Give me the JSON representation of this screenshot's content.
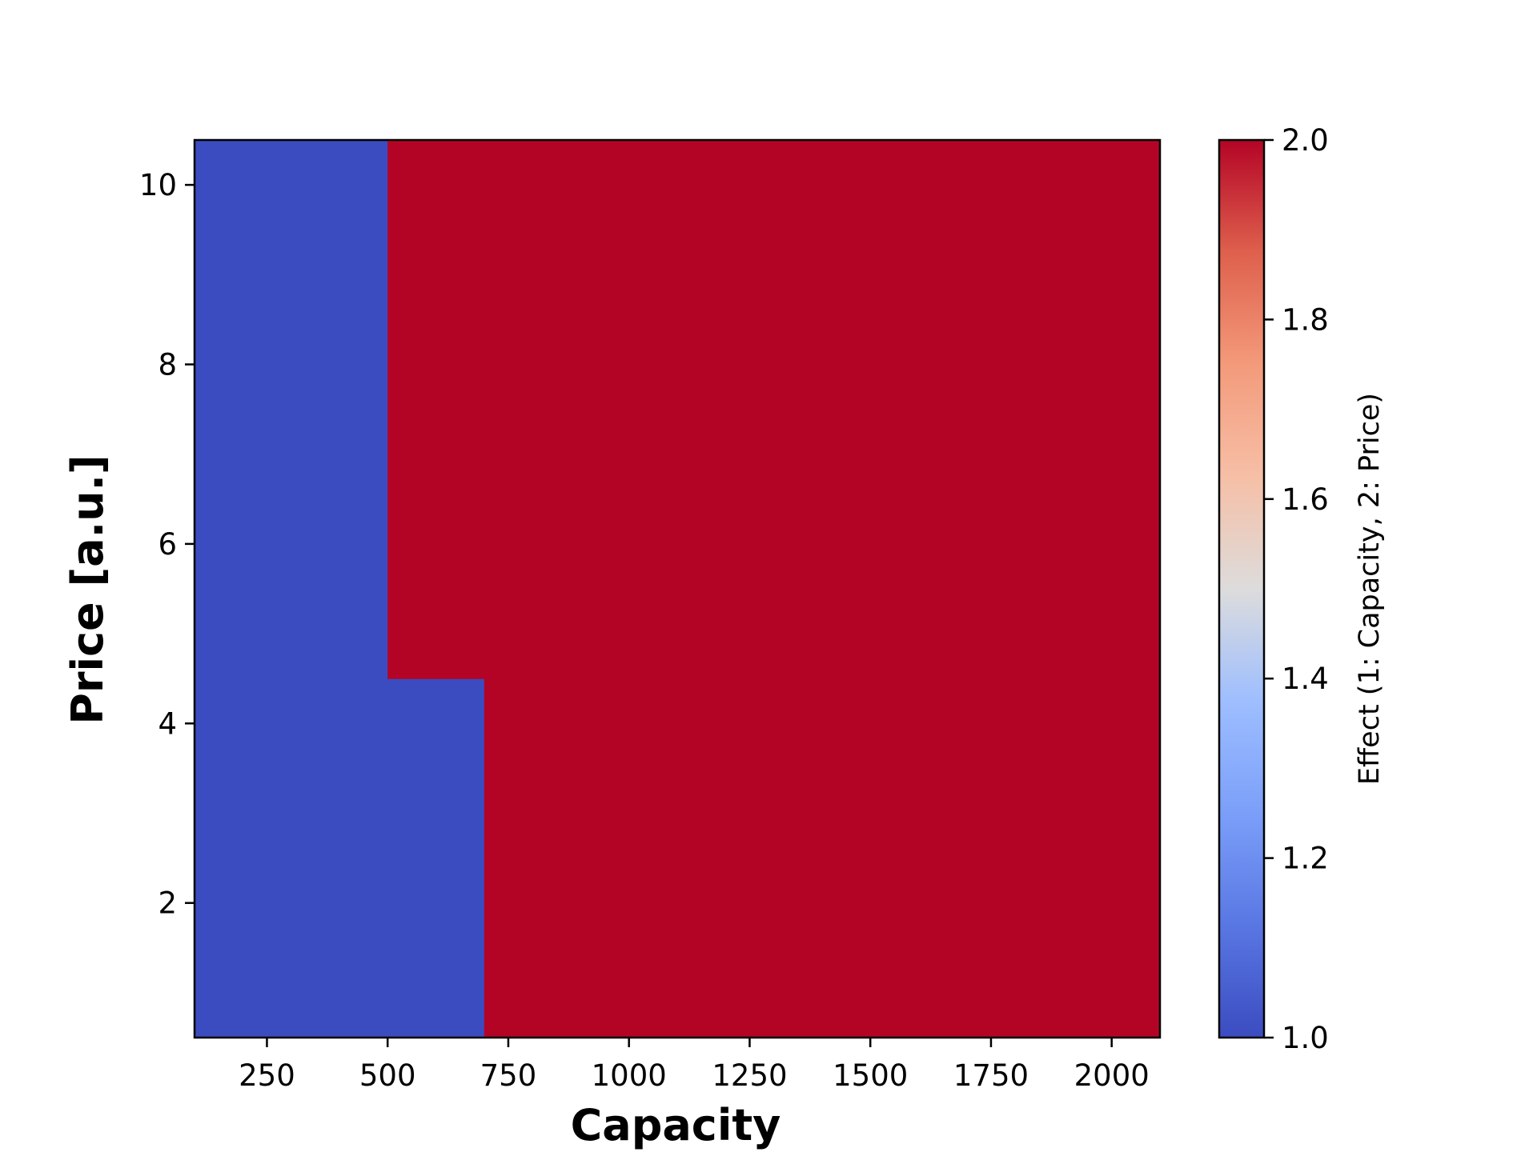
{
  "chart_data": {
    "type": "heatmap",
    "xlabel": "Capacity",
    "ylabel": "Price [a.u.]",
    "xlim": [
      100,
      2100
    ],
    "ylim": [
      0.5,
      10.5
    ],
    "xticks": [
      250,
      500,
      750,
      1000,
      1250,
      1500,
      1750,
      2000
    ],
    "yticks": [
      2,
      4,
      6,
      8,
      10
    ],
    "regions": [
      {
        "x0": 100,
        "x1": 500,
        "y0": 4.5,
        "y1": 10.5,
        "value": 1
      },
      {
        "x0": 100,
        "x1": 700,
        "y0": 0.5,
        "y1": 4.5,
        "value": 1
      },
      {
        "x0": 500,
        "x1": 2100,
        "y0": 4.5,
        "y1": 10.5,
        "value": 2
      },
      {
        "x0": 700,
        "x1": 2100,
        "y0": 0.5,
        "y1": 4.5,
        "value": 2
      }
    ],
    "colorbar": {
      "label": "Effect (1: Capacity, 2: Price)",
      "range": [
        1.0,
        2.0
      ],
      "ticks": [
        "1.0",
        "1.2",
        "1.4",
        "1.6",
        "1.8",
        "2.0"
      ],
      "colormap": "coolwarm",
      "low_color": "#3b4cc0",
      "high_color": "#b40426"
    },
    "grid": false
  }
}
